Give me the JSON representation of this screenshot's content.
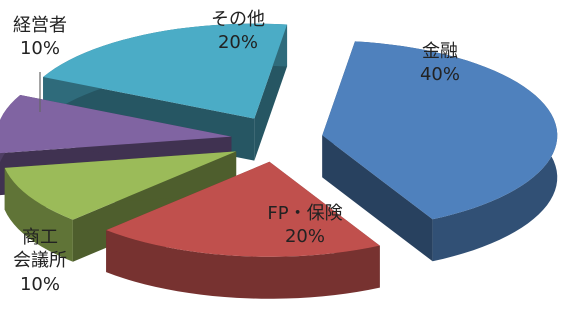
{
  "chart_data": {
    "type": "pie",
    "style": "3d-exploded",
    "title": "",
    "slices": [
      {
        "label": "金融",
        "value": 40,
        "pct_label": "40%",
        "color": "#4f81bd",
        "label_position": "inside"
      },
      {
        "label": "FP・保険",
        "value": 20,
        "pct_label": "20%",
        "color": "#c0504d",
        "label_position": "inside"
      },
      {
        "label": "商工\n会議所",
        "value": 10,
        "pct_label": "10%",
        "color": "#9bbb59",
        "label_position": "outside"
      },
      {
        "label": "経営者",
        "value": 10,
        "pct_label": "10%",
        "color": "#8064a2",
        "label_position": "outside"
      },
      {
        "label": "その他",
        "value": 20,
        "pct_label": "20%",
        "color": "#4bacc6",
        "label_position": "inside"
      }
    ]
  }
}
